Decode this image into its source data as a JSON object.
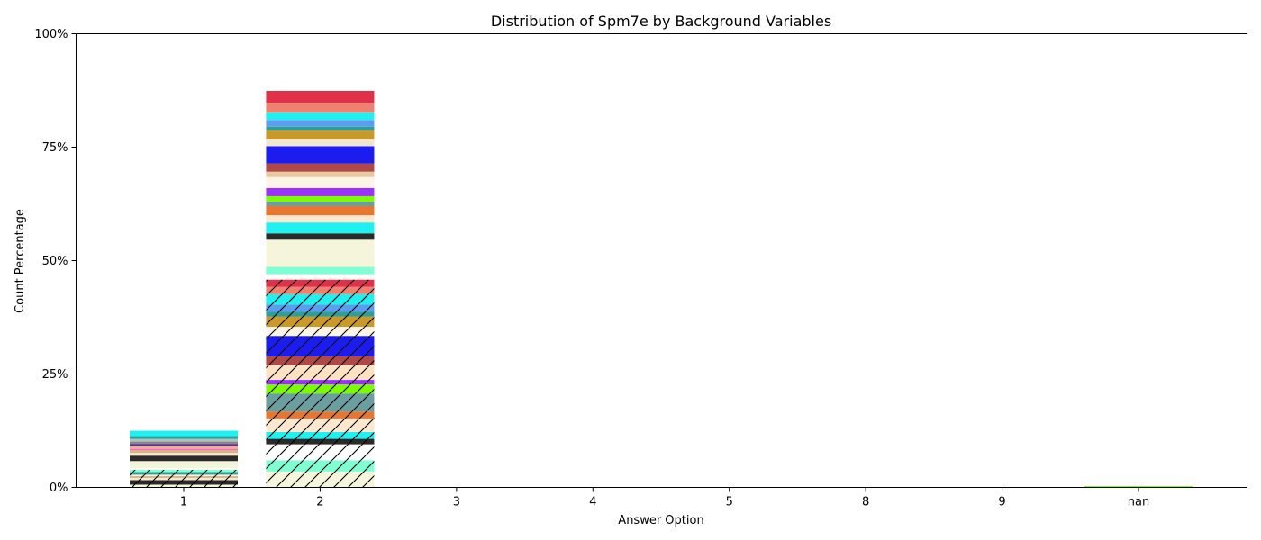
{
  "chart_data": {
    "type": "bar",
    "stacked": true,
    "title": "Distribution of Spm7e by Background Variables",
    "xlabel": "Answer Option",
    "ylabel": "Count Percentage",
    "categories": [
      "1",
      "2",
      "3",
      "4",
      "5",
      "8",
      "9",
      "nan"
    ],
    "ylim": [
      0,
      100
    ],
    "yticks": [
      0,
      25,
      50,
      75,
      100
    ],
    "ytick_labels": [
      "0%",
      "25%",
      "50%",
      "75%",
      "100%"
    ],
    "grid": false,
    "legend": "none",
    "stacks": [
      {
        "category": "1",
        "segments": [
          {
            "value": 0.6,
            "color": "#f5f5dc",
            "hatch": true
          },
          {
            "value": 1.0,
            "color": "#2a2a2a",
            "hatch": true
          },
          {
            "value": 0.5,
            "color": "#fbe8cf",
            "hatch": true
          },
          {
            "value": 0.4,
            "color": "#d9b38c",
            "hatch": true
          },
          {
            "value": 0.3,
            "color": "#f5f5dc",
            "hatch": true
          },
          {
            "value": 0.6,
            "color": "#2aa198",
            "hatch": true
          },
          {
            "value": 0.5,
            "color": "#7fffd4",
            "hatch": true
          },
          {
            "value": 0.3,
            "color": "#ffffff",
            "hatch": false
          },
          {
            "value": 1.6,
            "color": "#f5f5dc",
            "hatch": false
          },
          {
            "value": 1.2,
            "color": "#2a2a2a",
            "hatch": false
          },
          {
            "value": 0.6,
            "color": "#fbe8cf",
            "hatch": false
          },
          {
            "value": 0.6,
            "color": "#d9b38c",
            "hatch": false
          },
          {
            "value": 0.3,
            "color": "#ff69b4",
            "hatch": false
          },
          {
            "value": 0.6,
            "color": "#e8b09a",
            "hatch": false
          },
          {
            "value": 0.5,
            "color": "#6a2c91",
            "hatch": false
          },
          {
            "value": 0.5,
            "color": "#7f8c8d",
            "hatch": false
          },
          {
            "value": 0.3,
            "color": "#d2b48c",
            "hatch": false
          },
          {
            "value": 0.3,
            "color": "#87ceeb",
            "hatch": false
          },
          {
            "value": 0.6,
            "color": "#2aa198",
            "hatch": false
          },
          {
            "value": 1.2,
            "color": "#1ff0f0",
            "hatch": false
          }
        ]
      },
      {
        "category": "2",
        "segments": [
          {
            "value": 3.5,
            "color": "#f5f5dc",
            "hatch": true
          },
          {
            "value": 2.5,
            "color": "#7fffd4",
            "hatch": true
          },
          {
            "value": 3.5,
            "color": "#ffffff",
            "hatch": true
          },
          {
            "value": 1.2,
            "color": "#2a2a2a",
            "hatch": true
          },
          {
            "value": 1.5,
            "color": "#1ff0f0",
            "hatch": true
          },
          {
            "value": 3.0,
            "color": "#fbe8cf",
            "hatch": true
          },
          {
            "value": 1.5,
            "color": "#e8762f",
            "hatch": true
          },
          {
            "value": 4.0,
            "color": "#6b9e9e",
            "hatch": true
          },
          {
            "value": 2.0,
            "color": "#7cfc00",
            "hatch": true
          },
          {
            "value": 1.0,
            "color": "#9b30ff",
            "hatch": true
          },
          {
            "value": 3.2,
            "color": "#fde2c4",
            "hatch": true
          },
          {
            "value": 2.0,
            "color": "#b04848",
            "hatch": true
          },
          {
            "value": 4.5,
            "color": "#1c1cee",
            "hatch": true
          },
          {
            "value": 2.0,
            "color": "#fdf5e6",
            "hatch": true
          },
          {
            "value": 2.3,
            "color": "#c9992a",
            "hatch": true
          },
          {
            "value": 1.0,
            "color": "#2aa198",
            "hatch": true
          },
          {
            "value": 1.6,
            "color": "#5c9ded",
            "hatch": true
          },
          {
            "value": 2.3,
            "color": "#1ff0f0",
            "hatch": true
          },
          {
            "value": 1.6,
            "color": "#f08070",
            "hatch": true
          },
          {
            "value": 1.6,
            "color": "#e0304a",
            "hatch": true
          },
          {
            "value": 1.2,
            "color": "#ffffff",
            "hatch": false
          },
          {
            "value": 1.6,
            "color": "#7fffd4",
            "hatch": false
          },
          {
            "value": 6.0,
            "color": "#f5f5dc",
            "hatch": false
          },
          {
            "value": 1.4,
            "color": "#2a2a2a",
            "hatch": false
          },
          {
            "value": 2.4,
            "color": "#1ff0f0",
            "hatch": false
          },
          {
            "value": 1.6,
            "color": "#fbe8cf",
            "hatch": false
          },
          {
            "value": 2.0,
            "color": "#e8762f",
            "hatch": false
          },
          {
            "value": 1.0,
            "color": "#6b9e9e",
            "hatch": false
          },
          {
            "value": 1.2,
            "color": "#7cfc00",
            "hatch": false
          },
          {
            "value": 1.8,
            "color": "#9b30ff",
            "hatch": false
          },
          {
            "value": 2.4,
            "color": "#fdf5e6",
            "hatch": false
          },
          {
            "value": 1.2,
            "color": "#e8c9a0",
            "hatch": false
          },
          {
            "value": 1.8,
            "color": "#b04848",
            "hatch": false
          },
          {
            "value": 3.8,
            "color": "#1c1cee",
            "hatch": false
          },
          {
            "value": 1.5,
            "color": "#f0e6d2",
            "hatch": false
          },
          {
            "value": 2.0,
            "color": "#c9992a",
            "hatch": false
          },
          {
            "value": 0.8,
            "color": "#2aa198",
            "hatch": false
          },
          {
            "value": 1.5,
            "color": "#5c9ded",
            "hatch": false
          },
          {
            "value": 1.6,
            "color": "#1ff0f0",
            "hatch": false
          },
          {
            "value": 2.2,
            "color": "#f08070",
            "hatch": false
          },
          {
            "value": 2.6,
            "color": "#e0304a",
            "hatch": false
          }
        ]
      },
      {
        "category": "3",
        "segments": []
      },
      {
        "category": "4",
        "segments": []
      },
      {
        "category": "5",
        "segments": []
      },
      {
        "category": "8",
        "segments": []
      },
      {
        "category": "9",
        "segments": []
      },
      {
        "category": "nan",
        "segments": [
          {
            "value": 0.3,
            "color": "#7cfc00",
            "hatch": false
          }
        ]
      }
    ]
  }
}
